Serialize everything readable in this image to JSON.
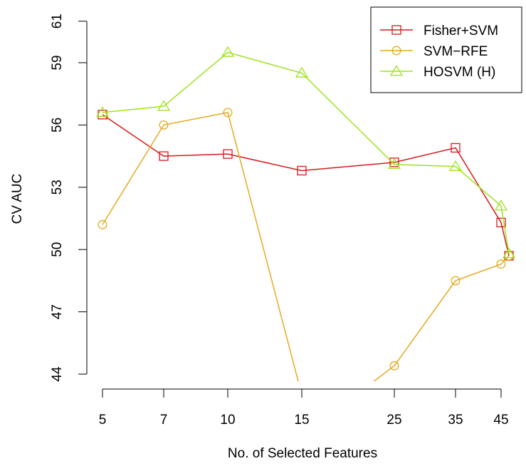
{
  "chart_data": {
    "type": "line",
    "title": "",
    "xlabel": "No. of Selected Features",
    "ylabel": "CV AUC",
    "x_tick_labels": [
      "5",
      "7",
      "10",
      "15",
      "25",
      "35",
      "45"
    ],
    "y_tick_labels": [
      "44",
      "47",
      "50",
      "53",
      "56",
      "59",
      "61"
    ],
    "ylim": [
      44,
      61
    ],
    "legend_position": "top-right",
    "grid": false,
    "series": [
      {
        "name": "Fisher+SVM",
        "color": "#d7191c",
        "marker": "square",
        "points": [
          {
            "x": "5",
            "y": 56.5
          },
          {
            "x": "7",
            "y": 54.5
          },
          {
            "x": "10",
            "y": 54.6
          },
          {
            "x": "15",
            "y": 53.8
          },
          {
            "x": "25",
            "y": 54.2
          },
          {
            "x": "35",
            "y": 54.9
          },
          {
            "x": "45",
            "y": 51.3
          },
          {
            "x": "~46",
            "y": 49.7
          }
        ]
      },
      {
        "name": "SVM−RFE",
        "color": "#e6a91e",
        "marker": "circle",
        "points": [
          {
            "x": "5",
            "y": 51.2
          },
          {
            "x": "7",
            "y": 56.0
          },
          {
            "x": "10",
            "y": 56.6
          },
          {
            "x": "15",
            "y": 43.0
          },
          {
            "x": "~20",
            "y": 43.0
          },
          {
            "x": "25",
            "y": 44.4
          },
          {
            "x": "35",
            "y": 48.5
          },
          {
            "x": "45",
            "y": 49.3
          },
          {
            "x": "~46",
            "y": 49.7
          }
        ]
      },
      {
        "name": "HOSVM (H)",
        "color": "#9ee31e",
        "marker": "triangle",
        "points": [
          {
            "x": "5",
            "y": 56.6
          },
          {
            "x": "7",
            "y": 56.9
          },
          {
            "x": "10",
            "y": 59.5
          },
          {
            "x": "15",
            "y": 58.5
          },
          {
            "x": "25",
            "y": 54.1
          },
          {
            "x": "35",
            "y": 54.0
          },
          {
            "x": "45",
            "y": 52.1
          },
          {
            "x": "~46",
            "y": 49.8
          }
        ]
      }
    ]
  }
}
